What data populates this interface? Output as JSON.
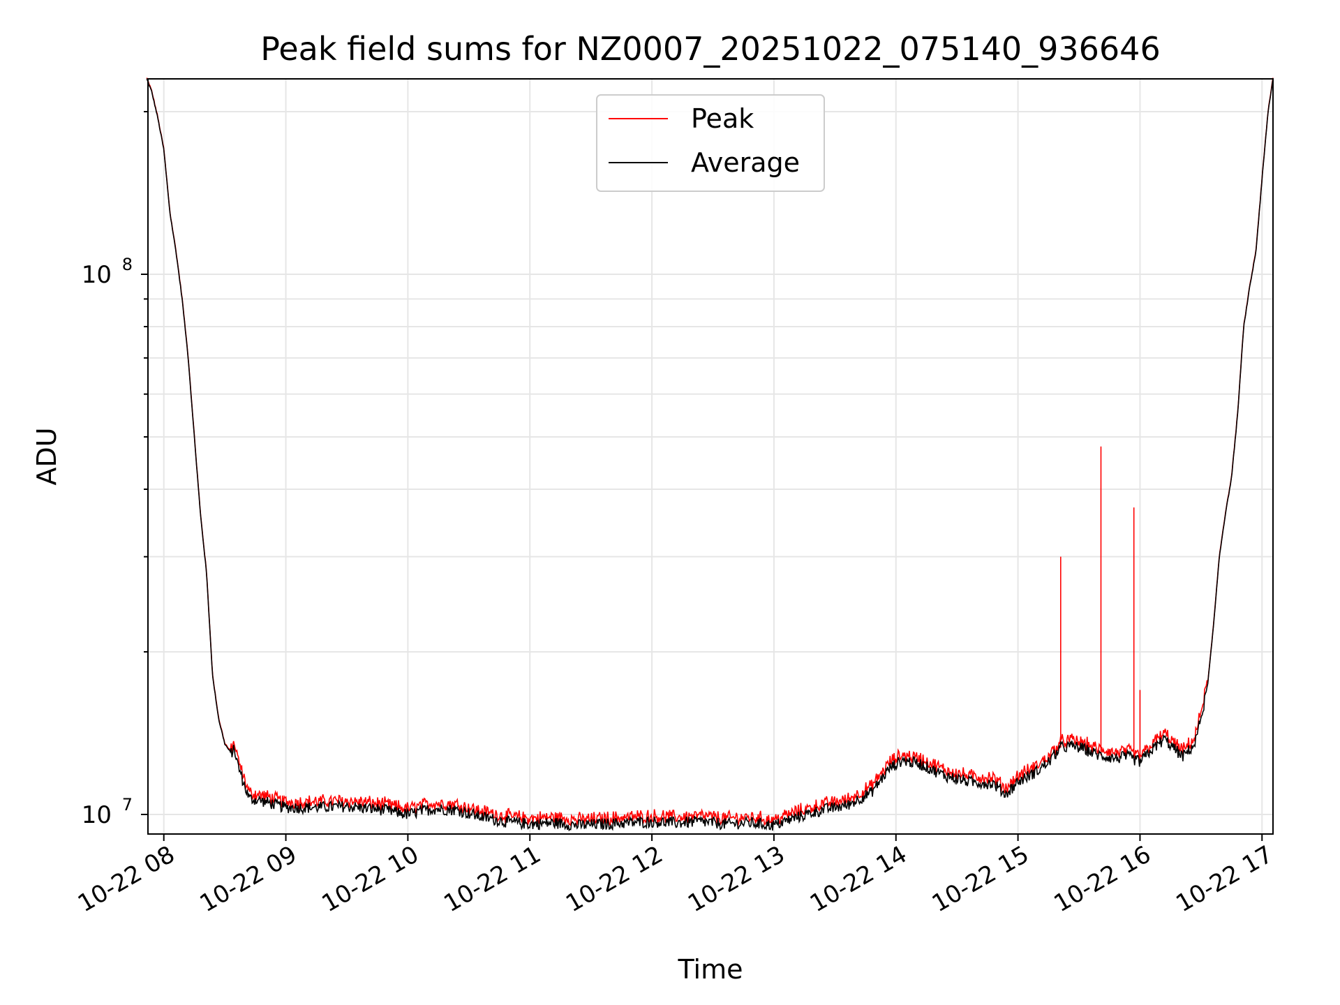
{
  "chart_data": {
    "type": "line",
    "title": "Peak field sums for NZ0007_20251022_075140_936646",
    "xlabel": "Time",
    "ylabel": "ADU",
    "y_scale": "log",
    "grid": true,
    "legend_position": "top-center",
    "xlim_hours": [
      7.87,
      17.09
    ],
    "ylim": [
      9200000,
      230000000
    ],
    "x_ticks": [
      {
        "hour": 8,
        "label": "10-22 08"
      },
      {
        "hour": 9,
        "label": "10-22 09"
      },
      {
        "hour": 10,
        "label": "10-22 10"
      },
      {
        "hour": 11,
        "label": "10-22 11"
      },
      {
        "hour": 12,
        "label": "10-22 12"
      },
      {
        "hour": 13,
        "label": "10-22 13"
      },
      {
        "hour": 14,
        "label": "10-22 14"
      },
      {
        "hour": 15,
        "label": "10-22 15"
      },
      {
        "hour": 16,
        "label": "10-22 16"
      },
      {
        "hour": 17,
        "label": "10-22 17"
      }
    ],
    "y_ticks": [
      {
        "value": 10000000,
        "base": "10",
        "exp": "7"
      },
      {
        "value": 100000000,
        "base": "10",
        "exp": "8"
      }
    ],
    "series_colors": {
      "peak": "#ff0000",
      "average": "#000000"
    },
    "series": [
      {
        "name": "Average",
        "key": "average",
        "points": [
          [
            7.86,
            230000000
          ],
          [
            7.9,
            218000000
          ],
          [
            7.95,
            195000000
          ],
          [
            8.0,
            170000000
          ],
          [
            8.05,
            130000000
          ],
          [
            8.1,
            110000000
          ],
          [
            8.15,
            90000000
          ],
          [
            8.2,
            70000000
          ],
          [
            8.25,
            50000000
          ],
          [
            8.3,
            36000000
          ],
          [
            8.35,
            28000000
          ],
          [
            8.4,
            18000000
          ],
          [
            8.45,
            15000000
          ],
          [
            8.5,
            13500000
          ],
          [
            8.55,
            13000000
          ],
          [
            8.58,
            13200000
          ],
          [
            8.6,
            12500000
          ],
          [
            8.65,
            11500000
          ],
          [
            8.7,
            10700000
          ],
          [
            8.8,
            10600000
          ],
          [
            9.0,
            10300000
          ],
          [
            9.2,
            10300000
          ],
          [
            9.5,
            10350000
          ],
          [
            9.8,
            10200000
          ],
          [
            10.0,
            10000000
          ],
          [
            10.2,
            10250000
          ],
          [
            10.4,
            10200000
          ],
          [
            10.6,
            9900000
          ],
          [
            10.8,
            9700000
          ],
          [
            11.0,
            9600000
          ],
          [
            11.2,
            9650000
          ],
          [
            11.4,
            9550000
          ],
          [
            11.6,
            9600000
          ],
          [
            11.8,
            9650000
          ],
          [
            12.0,
            9700000
          ],
          [
            12.2,
            9650000
          ],
          [
            12.4,
            9700000
          ],
          [
            12.6,
            9600000
          ],
          [
            12.8,
            9650000
          ],
          [
            13.0,
            9550000
          ],
          [
            13.2,
            9900000
          ],
          [
            13.4,
            10200000
          ],
          [
            13.6,
            10400000
          ],
          [
            13.8,
            11000000
          ],
          [
            13.95,
            12200000
          ],
          [
            14.05,
            12600000
          ],
          [
            14.2,
            12400000
          ],
          [
            14.4,
            11800000
          ],
          [
            14.6,
            11500000
          ],
          [
            14.8,
            11400000
          ],
          [
            14.9,
            10900000
          ],
          [
            15.0,
            11500000
          ],
          [
            15.15,
            12000000
          ],
          [
            15.25,
            12500000
          ],
          [
            15.35,
            13300000
          ],
          [
            15.45,
            13400000
          ],
          [
            15.55,
            13200000
          ],
          [
            15.65,
            12900000
          ],
          [
            15.8,
            12700000
          ],
          [
            15.9,
            12800000
          ],
          [
            16.0,
            12500000
          ],
          [
            16.1,
            13200000
          ],
          [
            16.2,
            13800000
          ],
          [
            16.3,
            13100000
          ],
          [
            16.35,
            12800000
          ],
          [
            16.45,
            13500000
          ],
          [
            16.55,
            17000000
          ],
          [
            16.6,
            22000000
          ],
          [
            16.65,
            30000000
          ],
          [
            16.7,
            36000000
          ],
          [
            16.75,
            42000000
          ],
          [
            16.8,
            55000000
          ],
          [
            16.85,
            80000000
          ],
          [
            16.9,
            95000000
          ],
          [
            16.95,
            110000000
          ],
          [
            17.0,
            150000000
          ],
          [
            17.05,
            200000000
          ],
          [
            17.09,
            230000000
          ]
        ]
      },
      {
        "name": "Peak",
        "key": "peak",
        "offset_ratio": 1.025,
        "spikes": [
          [
            15.35,
            30000000
          ],
          [
            15.68,
            48000000
          ],
          [
            15.95,
            37000000
          ],
          [
            16.0,
            17000000
          ]
        ]
      }
    ]
  }
}
